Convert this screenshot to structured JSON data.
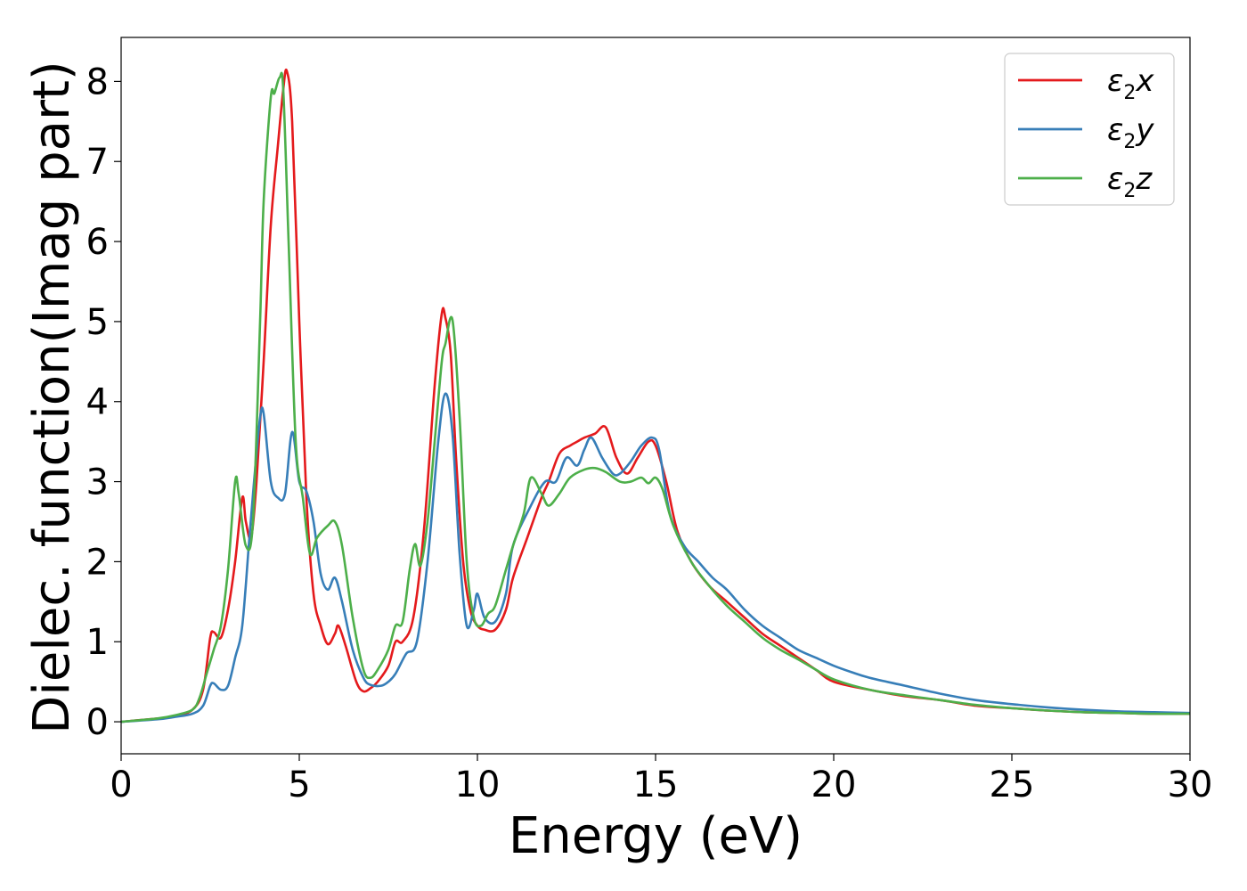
{
  "chart_data": {
    "type": "line",
    "xlabel": "Energy (eV)",
    "ylabel": "Dielec. function(Imag part)",
    "xlim": [
      0,
      30
    ],
    "ylim": [
      -0.4,
      8.55
    ],
    "xticks": [
      "0",
      "5",
      "10",
      "15",
      "20",
      "25",
      "30"
    ],
    "yticks": [
      "0",
      "1",
      "2",
      "3",
      "4",
      "5",
      "6",
      "7",
      "8"
    ],
    "grid": false,
    "legend_position": "top-right",
    "series": [
      {
        "name": "ε2x",
        "symbol": "ε",
        "subscript": "2",
        "suffix": "x",
        "color": "#e41a1c",
        "x": [
          0,
          1,
          1.5,
          2,
          2.3,
          2.5,
          2.6,
          2.8,
          3.0,
          3.2,
          3.4,
          3.5,
          3.65,
          3.8,
          4.0,
          4.2,
          4.4,
          4.55,
          4.65,
          4.8,
          5.0,
          5.2,
          5.4,
          5.6,
          5.8,
          6.0,
          6.1,
          6.3,
          6.6,
          6.8,
          7.0,
          7.2,
          7.5,
          7.7,
          7.9,
          8.2,
          8.5,
          8.8,
          9.0,
          9.1,
          9.25,
          9.4,
          9.6,
          9.8,
          10.0,
          10.2,
          10.5,
          10.8,
          11.0,
          11.4,
          11.8,
          12.0,
          12.3,
          12.6,
          12.8,
          13.0,
          13.3,
          13.6,
          13.9,
          14.2,
          14.5,
          14.8,
          15.0,
          15.3,
          15.6,
          16.0,
          16.5,
          17.0,
          17.5,
          18.0,
          18.5,
          19.0,
          19.5,
          20.0,
          21.0,
          22.0,
          23.0,
          24.0,
          25.0,
          26.0,
          27.0,
          28.0,
          29.0,
          30.0
        ],
        "y": [
          0,
          0.04,
          0.07,
          0.15,
          0.4,
          1.05,
          1.12,
          1.05,
          1.4,
          2.0,
          2.8,
          2.5,
          2.3,
          3.0,
          4.5,
          6.2,
          7.2,
          7.9,
          8.13,
          7.5,
          5.0,
          2.8,
          1.6,
          1.2,
          0.97,
          1.1,
          1.2,
          0.95,
          0.5,
          0.38,
          0.42,
          0.5,
          0.7,
          1.0,
          1.0,
          1.3,
          2.4,
          4.2,
          5.1,
          5.05,
          4.6,
          3.3,
          2.0,
          1.4,
          1.2,
          1.15,
          1.15,
          1.4,
          1.8,
          2.3,
          2.8,
          3.0,
          3.35,
          3.45,
          3.5,
          3.55,
          3.6,
          3.68,
          3.3,
          3.1,
          3.3,
          3.5,
          3.45,
          3.0,
          2.4,
          2.0,
          1.7,
          1.5,
          1.3,
          1.1,
          0.95,
          0.8,
          0.65,
          0.5,
          0.4,
          0.32,
          0.27,
          0.2,
          0.17,
          0.14,
          0.12,
          0.11,
          0.1,
          0.1
        ]
      },
      {
        "name": "ε2y",
        "symbol": "ε",
        "subscript": "2",
        "suffix": "y",
        "color": "#377eb8",
        "x": [
          0,
          1,
          1.5,
          2,
          2.3,
          2.5,
          2.6,
          2.8,
          3.0,
          3.2,
          3.4,
          3.6,
          3.75,
          3.9,
          4.0,
          4.2,
          4.4,
          4.6,
          4.8,
          5.0,
          5.2,
          5.4,
          5.6,
          5.8,
          6.0,
          6.2,
          6.5,
          6.8,
          7.0,
          7.3,
          7.5,
          7.7,
          8.0,
          8.3,
          8.6,
          8.9,
          9.1,
          9.3,
          9.5,
          9.7,
          9.9,
          10.0,
          10.2,
          10.5,
          10.8,
          11.0,
          11.5,
          11.9,
          12.2,
          12.5,
          12.8,
          13.0,
          13.2,
          13.5,
          13.8,
          14.0,
          14.3,
          14.6,
          14.9,
          15.1,
          15.4,
          15.8,
          16.2,
          16.6,
          17.0,
          17.5,
          18.0,
          18.5,
          19.0,
          19.5,
          20.0,
          20.5,
          21.0,
          22.0,
          23.0,
          24.0,
          25.0,
          26.0,
          27.0,
          28.0,
          29.0,
          30.0
        ],
        "y": [
          0,
          0.03,
          0.06,
          0.1,
          0.2,
          0.45,
          0.48,
          0.4,
          0.45,
          0.8,
          1.2,
          2.3,
          3.1,
          3.8,
          3.85,
          3.0,
          2.8,
          2.85,
          3.62,
          3.0,
          2.88,
          2.5,
          1.85,
          1.65,
          1.8,
          1.5,
          0.9,
          0.55,
          0.46,
          0.45,
          0.5,
          0.6,
          0.85,
          1.0,
          2.0,
          3.5,
          4.1,
          3.6,
          2.1,
          1.2,
          1.4,
          1.6,
          1.3,
          1.25,
          1.6,
          2.2,
          2.7,
          3.0,
          3.0,
          3.3,
          3.2,
          3.4,
          3.55,
          3.3,
          3.1,
          3.1,
          3.25,
          3.45,
          3.55,
          3.4,
          2.6,
          2.2,
          2.0,
          1.8,
          1.65,
          1.4,
          1.2,
          1.05,
          0.9,
          0.8,
          0.7,
          0.62,
          0.55,
          0.45,
          0.35,
          0.27,
          0.22,
          0.18,
          0.15,
          0.13,
          0.12,
          0.11
        ]
      },
      {
        "name": "ε2z",
        "symbol": "ε",
        "subscript": "2",
        "suffix": "z",
        "color": "#4daf4a",
        "x": [
          0,
          1,
          1.5,
          2,
          2.2,
          2.4,
          2.6,
          2.8,
          3.0,
          3.2,
          3.3,
          3.5,
          3.7,
          3.9,
          4.0,
          4.2,
          4.3,
          4.45,
          4.55,
          4.7,
          4.9,
          5.1,
          5.3,
          5.5,
          5.8,
          6.0,
          6.2,
          6.5,
          6.8,
          7.0,
          7.2,
          7.5,
          7.7,
          7.9,
          8.1,
          8.25,
          8.4,
          8.6,
          8.8,
          9.0,
          9.1,
          9.3,
          9.5,
          9.7,
          9.9,
          10.1,
          10.3,
          10.5,
          10.8,
          11.0,
          11.3,
          11.5,
          11.8,
          12.0,
          12.3,
          12.6,
          13.0,
          13.3,
          13.6,
          14.0,
          14.3,
          14.6,
          14.8,
          15.0,
          15.2,
          15.5,
          16.0,
          16.5,
          17.0,
          17.5,
          18.0,
          18.5,
          19.0,
          19.5,
          20.0,
          21.0,
          22.0,
          23.0,
          24.0,
          25.0,
          26.0,
          27.0,
          28.0,
          29.0,
          30.0
        ],
        "y": [
          0,
          0.04,
          0.08,
          0.15,
          0.3,
          0.6,
          0.9,
          1.2,
          1.9,
          3.0,
          2.85,
          2.2,
          2.5,
          5.0,
          6.5,
          7.8,
          7.85,
          8.05,
          7.9,
          6.0,
          3.5,
          2.8,
          2.1,
          2.3,
          2.45,
          2.5,
          2.2,
          1.3,
          0.65,
          0.55,
          0.65,
          0.9,
          1.2,
          1.25,
          1.9,
          2.22,
          1.95,
          2.5,
          3.5,
          4.5,
          4.72,
          5.02,
          3.8,
          2.0,
          1.3,
          1.2,
          1.35,
          1.45,
          1.9,
          2.2,
          2.6,
          3.05,
          2.85,
          2.7,
          2.85,
          3.05,
          3.15,
          3.17,
          3.12,
          3.0,
          3.0,
          3.05,
          2.98,
          3.05,
          2.9,
          2.45,
          2.0,
          1.7,
          1.45,
          1.25,
          1.05,
          0.9,
          0.78,
          0.65,
          0.53,
          0.4,
          0.33,
          0.27,
          0.21,
          0.17,
          0.14,
          0.12,
          0.11,
          0.1,
          0.1
        ]
      }
    ]
  }
}
